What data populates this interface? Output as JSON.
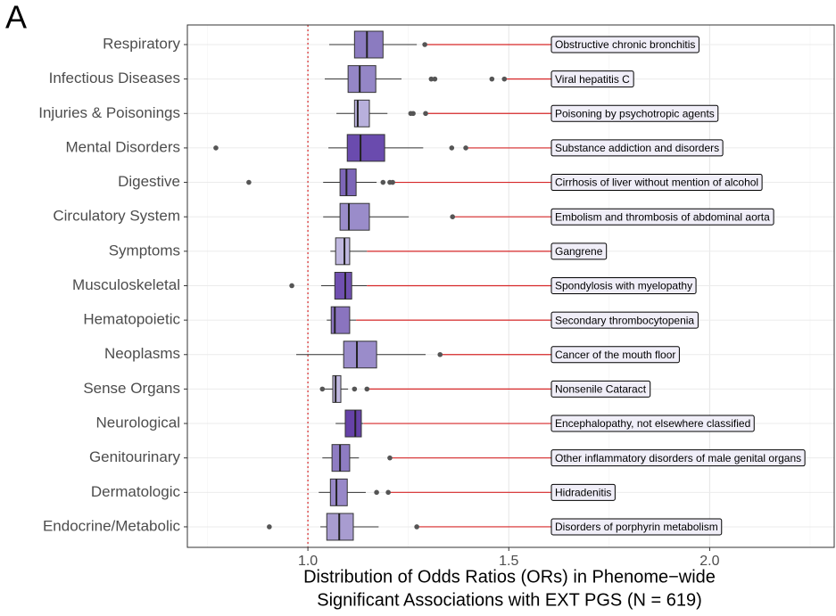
{
  "chart_data": {
    "type": "boxplot",
    "panel_label": "A",
    "xlabel": [
      "Distribution of Odds Ratios (ORs) in Phenome−wide",
      "Significant Associations with EXT PGS (N = 619)"
    ],
    "xlim": [
      0.7,
      2.31
    ],
    "xticks": [
      {
        "value": 1,
        "label": "1.0"
      },
      {
        "value": 1.5,
        "label": "1.5"
      },
      {
        "value": 2,
        "label": "2.0"
      }
    ],
    "minor_xticks": [
      0.75,
      1.25,
      1.75,
      2.25
    ],
    "reference_line": 1,
    "reference_color": "#d62728",
    "grid": true,
    "boxes": [
      {
        "category": "Respiratory",
        "color": "#8b7bc0",
        "whisker_low": 1.053,
        "q1": 1.116,
        "median": 1.147,
        "q3": 1.187,
        "whisker_high": 1.271,
        "outliers": [
          1.291
        ],
        "annotation": "Obstructive chronic bronchitis"
      },
      {
        "category": "Infectious Diseases",
        "color": "#9486c6",
        "whisker_low": 1.042,
        "q1": 1.1,
        "median": 1.129,
        "q3": 1.169,
        "whisker_high": 1.233,
        "outliers": [
          1.307,
          1.316,
          1.458,
          1.489
        ],
        "annotation": "Viral hepatitis C"
      },
      {
        "category": "Injuries & Poisonings",
        "color": "#b8b0dc",
        "whisker_low": 1.071,
        "q1": 1.116,
        "median": 1.124,
        "q3": 1.153,
        "whisker_high": 1.198,
        "outliers": [
          1.256,
          1.262,
          1.293
        ],
        "annotation": "Poisoning by psychotropic agents"
      },
      {
        "category": "Mental Disorders",
        "color": "#6a4bae",
        "whisker_low": 1.051,
        "q1": 1.098,
        "median": 1.131,
        "q3": 1.191,
        "whisker_high": 1.287,
        "outliers": [
          0.771,
          1.358,
          1.393
        ],
        "annotation": "Substance addiction and disorders"
      },
      {
        "category": "Digestive",
        "color": "#7d66b8",
        "whisker_low": 1.038,
        "q1": 1.08,
        "median": 1.096,
        "q3": 1.12,
        "whisker_high": 1.171,
        "outliers": [
          0.853,
          1.187,
          1.204,
          1.211
        ],
        "annotation": "Cirrhosis of liver without mention of alcohol"
      },
      {
        "category": "Circulatory System",
        "color": "#9a8cca",
        "whisker_low": 1.038,
        "q1": 1.08,
        "median": 1.102,
        "q3": 1.153,
        "whisker_high": 1.251,
        "outliers": [
          1.36
        ],
        "annotation": "Embolism and thrombosis of abdominal aorta"
      },
      {
        "category": "Symptoms",
        "color": "#c0b8e0",
        "whisker_low": 1.056,
        "q1": 1.069,
        "median": 1.091,
        "q3": 1.104,
        "whisker_high": 1.147,
        "outliers": [],
        "annotation": "Gangrene"
      },
      {
        "category": "Musculoskeletal",
        "color": "#7050b0",
        "whisker_low": 1.033,
        "q1": 1.067,
        "median": 1.093,
        "q3": 1.109,
        "whisker_high": 1.147,
        "outliers": [
          0.96
        ],
        "annotation": "Spondylosis with myelopathy"
      },
      {
        "category": "Hematopoietic",
        "color": "#8a74bf",
        "whisker_low": 1.047,
        "q1": 1.058,
        "median": 1.067,
        "q3": 1.104,
        "whisker_high": 1.12,
        "outliers": [],
        "annotation": "Secondary thrombocytopenia"
      },
      {
        "category": "Neoplasms",
        "color": "#9a8cca",
        "whisker_low": 0.971,
        "q1": 1.089,
        "median": 1.122,
        "q3": 1.171,
        "whisker_high": 1.293,
        "outliers": [
          1.329
        ],
        "annotation": "Cancer of the mouth floor"
      },
      {
        "category": "Sense Organs",
        "color": "#c0b8e0",
        "whisker_low": 1.04,
        "q1": 1.062,
        "median": 1.069,
        "q3": 1.082,
        "whisker_high": 1.1,
        "outliers": [
          1.036,
          1.116,
          1.147
        ],
        "annotation": "Nonsenile Cataract"
      },
      {
        "category": "Neurological",
        "color": "#6642a8",
        "whisker_low": 1.069,
        "q1": 1.093,
        "median": 1.118,
        "q3": 1.133,
        "whisker_high": 1.138,
        "outliers": [],
        "annotation": "Encephalopathy, not elsewhere classified"
      },
      {
        "category": "Genitourinary",
        "color": "#8e7cc2",
        "whisker_low": 1.036,
        "q1": 1.06,
        "median": 1.08,
        "q3": 1.104,
        "whisker_high": 1.127,
        "outliers": [
          1.204
        ],
        "annotation": "Other inflammatory disorders of male genital organs"
      },
      {
        "category": "Dermatologic",
        "color": "#9888c8",
        "whisker_low": 1.027,
        "q1": 1.056,
        "median": 1.071,
        "q3": 1.098,
        "whisker_high": 1.144,
        "outliers": [
          1.171,
          1.2
        ],
        "annotation": "Hidradenitis"
      },
      {
        "category": "Endocrine/Metabolic",
        "color": "#a89cd0",
        "whisker_low": 1.031,
        "q1": 1.047,
        "median": 1.078,
        "q3": 1.113,
        "whisker_high": 1.176,
        "outliers": [
          0.904,
          1.271
        ],
        "annotation": "Disorders of porphyrin metabolism"
      }
    ]
  }
}
